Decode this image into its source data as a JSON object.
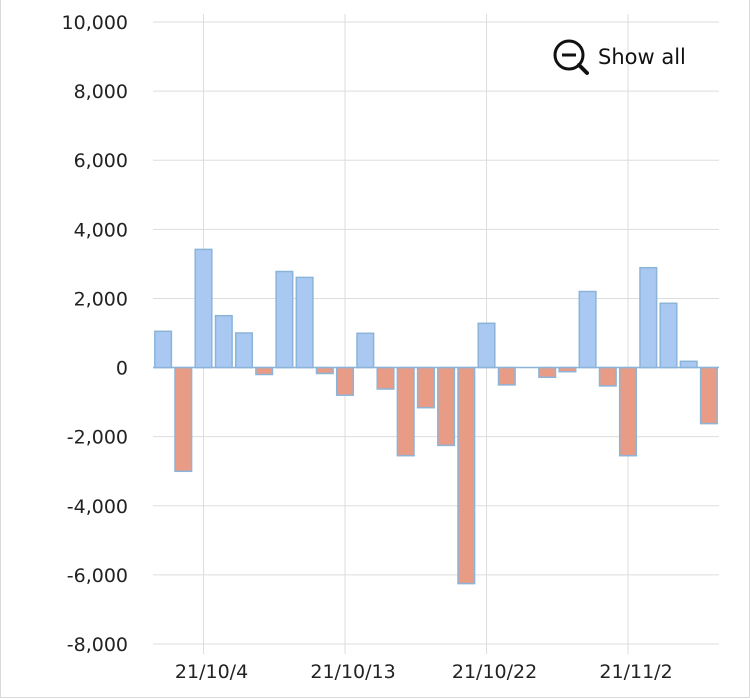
{
  "controls": {
    "show_all_label": "Show all",
    "show_all_icon": "zoom-out-icon"
  },
  "colors": {
    "positive": "#a9c8f2",
    "negative": "#e89c86",
    "bar_stroke": "#8cb4d8",
    "grid": "#dddddd"
  },
  "chart_data": {
    "type": "bar",
    "title": "",
    "xlabel": "",
    "ylabel": "",
    "ylim": [
      -8000,
      10000
    ],
    "yticks": [
      10000,
      8000,
      6000,
      4000,
      2000,
      0,
      -2000,
      -4000,
      -6000,
      -8000
    ],
    "ytick_labels": [
      "10,000",
      "8,000",
      "6,000",
      "4,000",
      "2,000",
      "0",
      "-2,000",
      "-4,000",
      "-6,000",
      "-8,000"
    ],
    "xticks": [
      {
        "date": "2021-10-04",
        "label": "21/10/4"
      },
      {
        "date": "2021-10-13",
        "label": "21/10/13"
      },
      {
        "date": "2021-10-22",
        "label": "21/10/22"
      },
      {
        "date": "2021-11-02",
        "label": "21/11/2"
      }
    ],
    "grid": true,
    "dates": [
      "2021-09-30",
      "2021-10-01",
      "2021-10-04",
      "2021-10-05",
      "2021-10-06",
      "2021-10-07",
      "2021-10-08",
      "2021-10-11",
      "2021-10-12",
      "2021-10-13",
      "2021-10-14",
      "2021-10-15",
      "2021-10-18",
      "2021-10-19",
      "2021-10-20",
      "2021-10-21",
      "2021-10-22",
      "2021-10-25",
      "2021-10-26",
      "2021-10-27",
      "2021-10-28",
      "2021-10-29",
      "2021-11-01",
      "2021-11-02",
      "2021-11-03",
      "2021-11-04",
      "2021-11-05",
      "2021-11-08"
    ],
    "values": [
      1050,
      -3000,
      3420,
      1500,
      1000,
      -200,
      2780,
      2610,
      -170,
      -800,
      990,
      -620,
      -2550,
      -1160,
      -2250,
      -6250,
      1280,
      -500,
      0,
      -280,
      -120,
      2200,
      -530,
      -2550,
      2890,
      1860,
      180,
      -1620
    ]
  }
}
